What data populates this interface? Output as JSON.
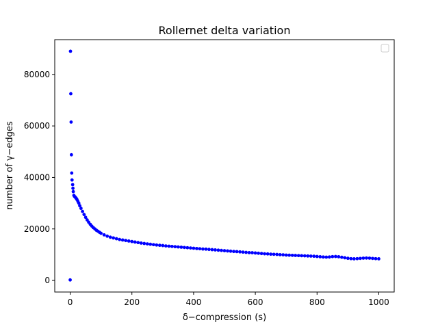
{
  "chart_data": {
    "type": "scatter",
    "title": "Rollernet delta variation",
    "xlabel": "δ−compression (s)",
    "ylabel": "number of γ−edges",
    "xlim": [
      -50,
      1050
    ],
    "ylim": [
      -4500,
      93500
    ],
    "x_ticks": [
      0,
      200,
      400,
      600,
      800,
      1000
    ],
    "y_ticks": [
      0,
      20000,
      40000,
      60000,
      80000
    ],
    "grid": false,
    "legend": {
      "placement": "top-right",
      "entries": []
    },
    "series": [
      {
        "color": "#0000ff",
        "marker": "circle",
        "points": [
          [
            0,
            200
          ],
          [
            1,
            89000
          ],
          [
            2,
            72500
          ],
          [
            3,
            61500
          ],
          [
            4,
            48800
          ],
          [
            5,
            41700
          ],
          [
            6,
            39000
          ],
          [
            8,
            37200
          ],
          [
            9,
            35800
          ],
          [
            10,
            34500
          ],
          [
            12,
            33000
          ],
          [
            14,
            32600
          ],
          [
            16,
            32400
          ],
          [
            18,
            32100
          ],
          [
            20,
            31800
          ],
          [
            22,
            31400
          ],
          [
            25,
            30700
          ],
          [
            28,
            30000
          ],
          [
            31,
            29000
          ],
          [
            35,
            28000
          ],
          [
            40,
            26800
          ],
          [
            45,
            25600
          ],
          [
            50,
            24500
          ],
          [
            55,
            23500
          ],
          [
            60,
            22600
          ],
          [
            65,
            21800
          ],
          [
            70,
            21100
          ],
          [
            75,
            20500
          ],
          [
            80,
            20000
          ],
          [
            85,
            19500
          ],
          [
            90,
            19100
          ],
          [
            95,
            18700
          ],
          [
            100,
            18300
          ],
          [
            110,
            17700
          ],
          [
            120,
            17200
          ],
          [
            130,
            16800
          ],
          [
            140,
            16500
          ],
          [
            150,
            16200
          ],
          [
            160,
            15900
          ],
          [
            170,
            15700
          ],
          [
            180,
            15500
          ],
          [
            190,
            15300
          ],
          [
            200,
            15100
          ],
          [
            210,
            14900
          ],
          [
            220,
            14700
          ],
          [
            230,
            14500
          ],
          [
            240,
            14350
          ],
          [
            250,
            14200
          ],
          [
            260,
            14050
          ],
          [
            270,
            13900
          ],
          [
            280,
            13750
          ],
          [
            290,
            13650
          ],
          [
            300,
            13550
          ],
          [
            310,
            13400
          ],
          [
            320,
            13300
          ],
          [
            330,
            13200
          ],
          [
            340,
            13100
          ],
          [
            350,
            13000
          ],
          [
            360,
            12900
          ],
          [
            370,
            12800
          ],
          [
            380,
            12700
          ],
          [
            390,
            12600
          ],
          [
            400,
            12500
          ],
          [
            410,
            12400
          ],
          [
            420,
            12300
          ],
          [
            430,
            12200
          ],
          [
            440,
            12150
          ],
          [
            450,
            12050
          ],
          [
            460,
            11950
          ],
          [
            470,
            11850
          ],
          [
            480,
            11750
          ],
          [
            490,
            11650
          ],
          [
            500,
            11550
          ],
          [
            510,
            11450
          ],
          [
            520,
            11350
          ],
          [
            530,
            11250
          ],
          [
            540,
            11200
          ],
          [
            550,
            11100
          ],
          [
            560,
            11000
          ],
          [
            570,
            10900
          ],
          [
            580,
            10800
          ],
          [
            590,
            10750
          ],
          [
            600,
            10650
          ],
          [
            610,
            10550
          ],
          [
            620,
            10450
          ],
          [
            630,
            10350
          ],
          [
            640,
            10300
          ],
          [
            650,
            10200
          ],
          [
            660,
            10150
          ],
          [
            670,
            10100
          ],
          [
            680,
            10000
          ],
          [
            690,
            9950
          ],
          [
            700,
            9850
          ],
          [
            710,
            9800
          ],
          [
            720,
            9750
          ],
          [
            730,
            9700
          ],
          [
            740,
            9650
          ],
          [
            750,
            9600
          ],
          [
            760,
            9550
          ],
          [
            770,
            9500
          ],
          [
            780,
            9450
          ],
          [
            790,
            9400
          ],
          [
            800,
            9300
          ],
          [
            810,
            9200
          ],
          [
            820,
            9100
          ],
          [
            830,
            9050
          ],
          [
            840,
            9100
          ],
          [
            850,
            9250
          ],
          [
            860,
            9300
          ],
          [
            870,
            9200
          ],
          [
            880,
            9000
          ],
          [
            890,
            8800
          ],
          [
            900,
            8600
          ],
          [
            910,
            8450
          ],
          [
            920,
            8400
          ],
          [
            930,
            8450
          ],
          [
            940,
            8550
          ],
          [
            950,
            8650
          ],
          [
            960,
            8700
          ],
          [
            970,
            8650
          ],
          [
            980,
            8550
          ],
          [
            990,
            8450
          ],
          [
            1000,
            8400
          ]
        ]
      }
    ]
  }
}
